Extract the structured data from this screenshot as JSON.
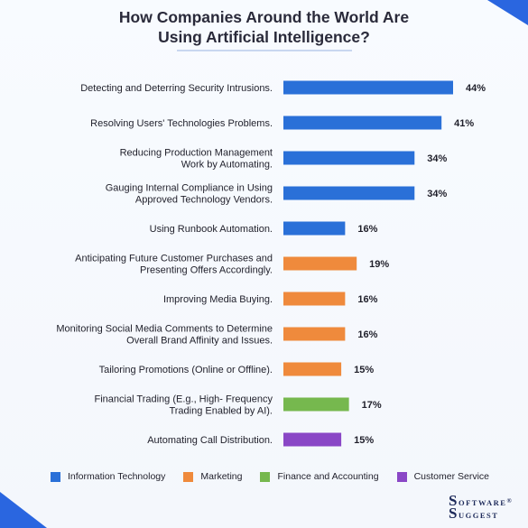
{
  "title": [
    "How Companies Around the World Are",
    "Using Artificial Intelligence?"
  ],
  "colors": {
    "Information Technology": "#2a70d8",
    "Marketing": "#ef8a3c",
    "Finance and Accounting": "#76b84e",
    "Customer Service": "#8a47c6",
    "corner": "#2a66e0"
  },
  "chart_data": {
    "type": "bar",
    "orientation": "horizontal",
    "title": "How Companies Around the World Are Using Artificial Intelligence?",
    "categories": [
      [
        "Detecting and Deterring Security Intrusions."
      ],
      [
        "Resolving Users' Technologies Problems."
      ],
      [
        "Reducing Production Management",
        "Work by Automating."
      ],
      [
        "Gauging Internal Compliance in Using",
        "Approved Technology Vendors."
      ],
      [
        "Using Runbook Automation."
      ],
      [
        "Anticipating Future Customer Purchases and",
        "Presenting Offers Accordingly."
      ],
      [
        "Improving Media Buying."
      ],
      [
        "Monitoring Social Media Comments to Determine",
        "Overall Brand Affinity and Issues."
      ],
      [
        "Tailoring Promotions (Online or Offline)."
      ],
      [
        "Financial Trading (E.g., High- Frequency",
        "Trading Enabled by AI)."
      ],
      [
        "Automating Call Distribution."
      ]
    ],
    "values": [
      44,
      41,
      34,
      34,
      16,
      19,
      16,
      16,
      15,
      17,
      15
    ],
    "value_labels": [
      "44%",
      "41%",
      "34%",
      "34%",
      "16%",
      "19%",
      "16%",
      "16%",
      "15%",
      "17%",
      "15%"
    ],
    "groups": [
      "Information Technology",
      "Information Technology",
      "Information Technology",
      "Information Technology",
      "Information Technology",
      "Marketing",
      "Marketing",
      "Marketing",
      "Marketing",
      "Finance and Accounting",
      "Customer Service"
    ],
    "legend": [
      "Information Technology",
      "Marketing",
      "Finance and Accounting",
      "Customer Service"
    ],
    "legend_position": "bottom",
    "grid": false
  },
  "logo": {
    "line1_big": "S",
    "line1_small": "OFTWARE",
    "reg": "®",
    "line2_big": "S",
    "line2_small": "UGGEST"
  }
}
